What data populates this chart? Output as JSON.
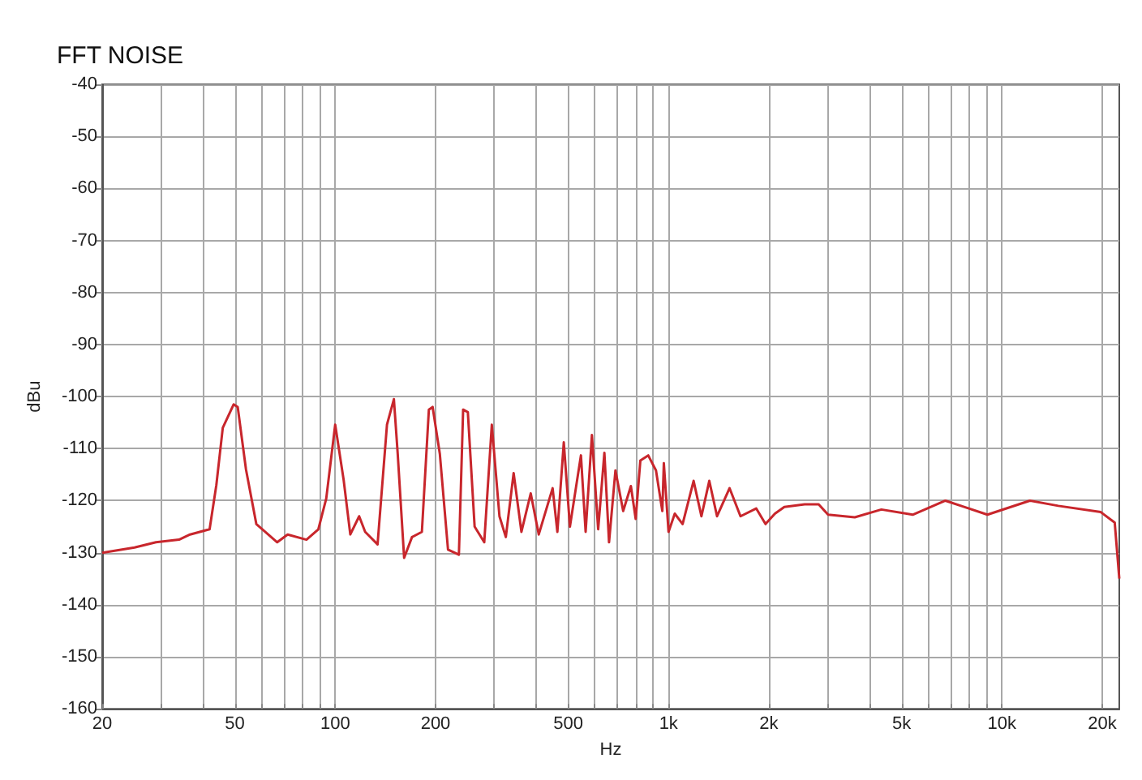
{
  "chart_data": {
    "type": "line",
    "title": "FFT NOISE",
    "xlabel": "Hz",
    "ylabel": "dBu",
    "log": "x",
    "grid": true,
    "line_style": "solid",
    "marker": "none",
    "xlim": [
      20,
      22500
    ],
    "xticks": [
      20,
      {
        "value": 30,
        "label": null
      },
      {
        "value": 40,
        "label": null
      },
      50,
      {
        "value": 60,
        "label": null
      },
      {
        "value": 70,
        "label": null
      },
      {
        "value": 80,
        "label": null
      },
      {
        "value": 90,
        "label": null
      },
      100,
      200,
      {
        "value": 300,
        "label": null
      },
      {
        "value": 400,
        "label": null
      },
      500,
      {
        "value": 600,
        "label": null
      },
      {
        "value": 700,
        "label": null
      },
      {
        "value": 800,
        "label": null
      },
      {
        "value": 900,
        "label": null
      },
      {
        "value": 1000,
        "label": "1k"
      },
      {
        "value": 2000,
        "label": "2k"
      },
      {
        "value": 3000,
        "label": null
      },
      {
        "value": 4000,
        "label": null
      },
      {
        "value": 5000,
        "label": "5k"
      },
      {
        "value": 6000,
        "label": null
      },
      {
        "value": 7000,
        "label": null
      },
      {
        "value": 8000,
        "label": null
      },
      {
        "value": 9000,
        "label": null
      },
      {
        "value": 10000,
        "label": "10k"
      },
      {
        "value": 20000,
        "label": "20k"
      }
    ],
    "ylim": [
      -160,
      -40
    ],
    "yticks": [
      -160,
      -150,
      -140,
      -130,
      -120,
      -110,
      -100,
      -90,
      -80,
      -70,
      -60,
      -50,
      -40
    ],
    "series": [
      {
        "color": "#c8262c",
        "x": [
          20,
          25,
          29,
          34,
          36.7,
          42,
          44,
          46,
          49.6,
          51,
          54,
          58,
          67,
          72,
          82,
          89,
          94,
          100,
          106,
          111,
          118,
          123,
          134,
          143,
          150,
          154,
          161,
          170,
          182,
          191,
          196,
          206,
          218,
          235,
          242,
          250,
          262,
          280,
          295,
          311,
          325,
          343,
          362,
          386,
          408,
          449,
          464,
          485,
          506,
          546,
          564,
          589,
          615,
          642,
          663,
          693,
          731,
          771,
          797,
          823,
          869,
          917,
          958,
          968,
          1000,
          1044,
          1102,
          1189,
          1255,
          1325,
          1398,
          1524,
          1644,
          1832,
          1954,
          2085,
          2225,
          2560,
          2820,
          3010,
          3620,
          4350,
          5400,
          6770,
          7700,
          9050,
          12130,
          14770,
          19800,
          21800,
          22500
        ],
        "values": [
          -130,
          -129,
          -128,
          -127.5,
          -126.5,
          -125.5,
          -117,
          -106,
          -101.5,
          -102,
          -114,
          -124.5,
          -128,
          -126.5,
          -127.5,
          -125.5,
          -119.6,
          -105.4,
          -116,
          -126.5,
          -123,
          -126,
          -128.4,
          -105.4,
          -100.5,
          -111,
          -131,
          -127,
          -126,
          -102.5,
          -102,
          -111,
          -129.4,
          -130.4,
          -102.5,
          -103,
          -125,
          -128,
          -105.4,
          -123,
          -127,
          -114.7,
          -126,
          -118.6,
          -126.5,
          -117.6,
          -126,
          -108.8,
          -125,
          -111.3,
          -126,
          -107.4,
          -125.5,
          -110.8,
          -128,
          -114.2,
          -122,
          -117.2,
          -123.5,
          -112.3,
          -111.3,
          -114.2,
          -122,
          -112.8,
          -126,
          -122.5,
          -124.5,
          -116.2,
          -123,
          -116.2,
          -123,
          -117.6,
          -123,
          -121.5,
          -124.5,
          -122.5,
          -121.2,
          -120.7,
          -120.7,
          -122.7,
          -123.2,
          -121.7,
          -122.7,
          -120,
          -121.2,
          -122.7,
          -120,
          -121,
          -122.2,
          -124.2,
          -135
        ]
      }
    ]
  }
}
